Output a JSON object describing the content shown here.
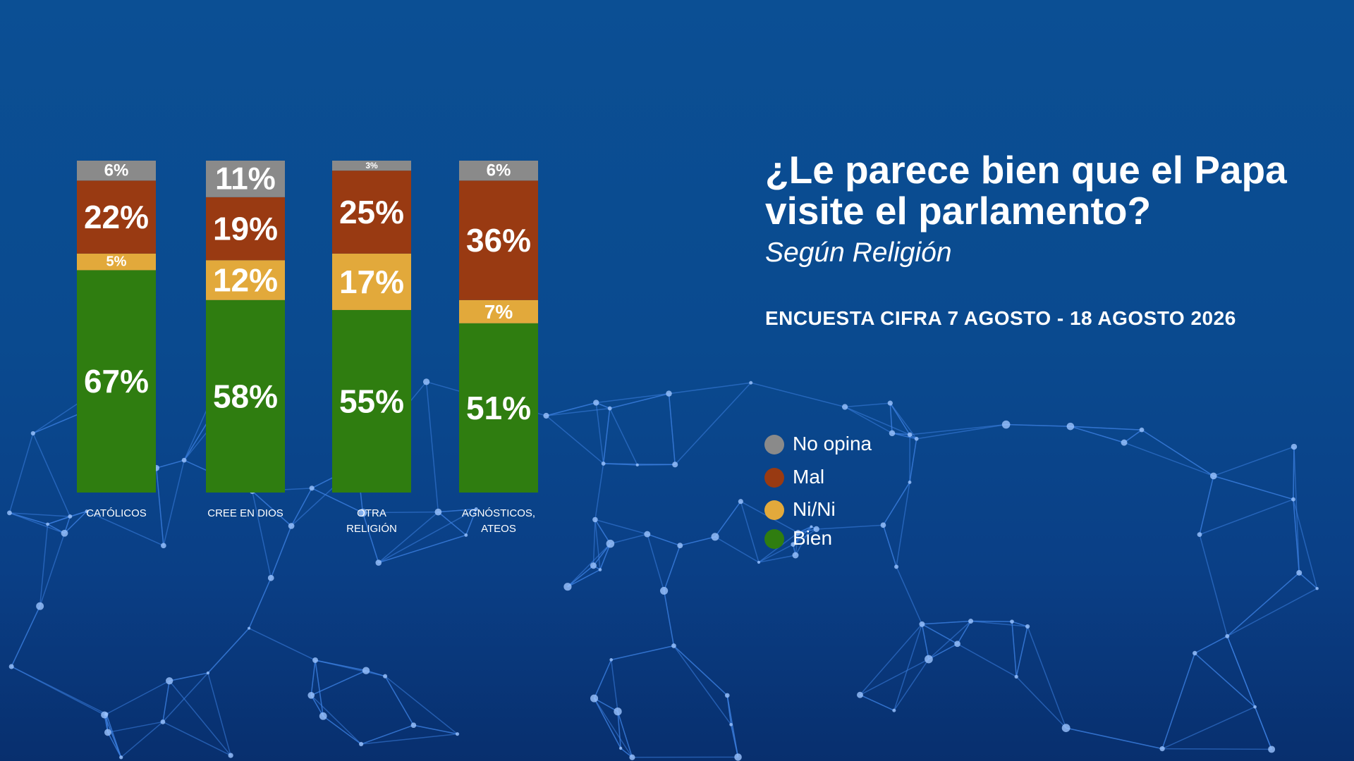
{
  "chart_data": {
    "type": "stacked_bar",
    "title": "¿Le parece bien que el Papa visite el parlamento?",
    "subtitle": "Según Religión",
    "source": "ENCUESTA CIFRA 7 AGOSTO - 18 AGOSTO 2026",
    "categories": [
      "CATÓLICOS",
      "CREE EN DIOS",
      "OTRA RELIGIÓN",
      "AGNÓSTICOS, ATEOS"
    ],
    "ylim": [
      0,
      100
    ],
    "series": [
      {
        "name": "Bien",
        "color": "#2f7d10",
        "values": [
          67,
          58,
          55,
          51
        ],
        "value_labels": [
          "67%",
          "58%",
          "55%",
          "51%"
        ]
      },
      {
        "name": "Ni/Ni",
        "color": "#e2a93b",
        "values": [
          5,
          12,
          17,
          7
        ],
        "value_labels": [
          "5%",
          "12%",
          "17%",
          "7%"
        ]
      },
      {
        "name": "Mal",
        "color": "#993a12",
        "values": [
          22,
          19,
          25,
          36
        ],
        "value_labels": [
          "22%",
          "19%",
          "25%",
          "36%"
        ]
      },
      {
        "name": "No opina",
        "color": "#8a8a8a",
        "values": [
          6,
          11,
          3,
          6
        ],
        "value_labels": [
          "6%",
          "11%",
          "3%",
          "6%"
        ]
      }
    ]
  }
}
